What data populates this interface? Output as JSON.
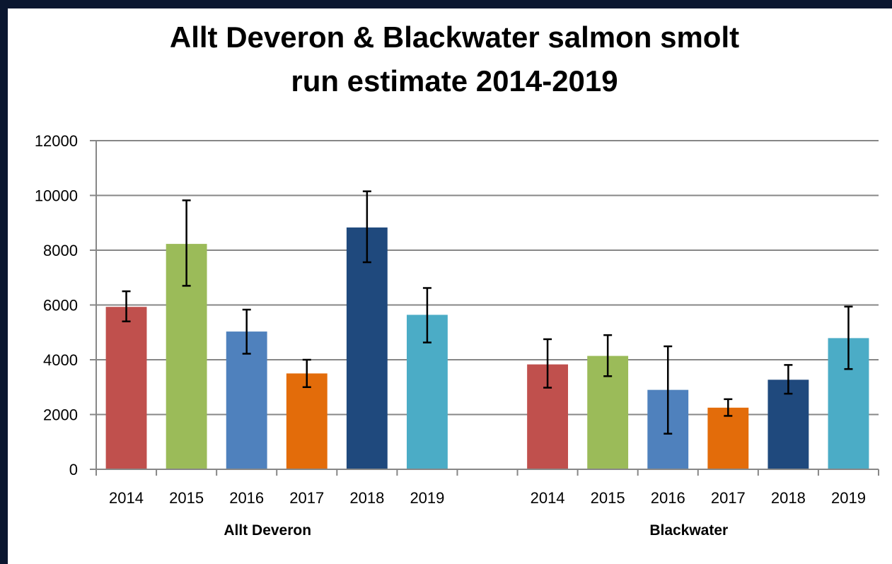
{
  "chart_data": {
    "type": "bar",
    "title_line1": "Allt Deveron & Blackwater salmon smolt",
    "title_line2": "run estimate 2014-2019",
    "xlabel": "",
    "ylabel": "",
    "ylim": [
      0,
      12000
    ],
    "yticks": [
      "0",
      "2000",
      "4000",
      "6000",
      "8000",
      "10000",
      "12000"
    ],
    "grid": true,
    "legend": "none",
    "groups": [
      {
        "name": "Allt Deveron",
        "bars": [
          {
            "year": "2014",
            "value": 5930,
            "err_low": 5400,
            "err_high": 6500,
            "color": "#c0504d"
          },
          {
            "year": "2015",
            "value": 8230,
            "err_low": 6700,
            "err_high": 9820,
            "color": "#9bbb59"
          },
          {
            "year": "2016",
            "value": 5030,
            "err_low": 4220,
            "err_high": 5830,
            "color": "#4f81bd"
          },
          {
            "year": "2017",
            "value": 3500,
            "err_low": 3000,
            "err_high": 4000,
            "color": "#e36c0a"
          },
          {
            "year": "2018",
            "value": 8830,
            "err_low": 7560,
            "err_high": 10150,
            "color": "#1f497d"
          },
          {
            "year": "2019",
            "value": 5640,
            "err_low": 4630,
            "err_high": 6620,
            "color": "#4bacc6"
          }
        ]
      },
      {
        "name": "Blackwater",
        "bars": [
          {
            "year": "2014",
            "value": 3830,
            "err_low": 2980,
            "err_high": 4750,
            "color": "#c0504d"
          },
          {
            "year": "2015",
            "value": 4140,
            "err_low": 3400,
            "err_high": 4900,
            "color": "#9bbb59"
          },
          {
            "year": "2016",
            "value": 2900,
            "err_low": 1300,
            "err_high": 4490,
            "color": "#4f81bd"
          },
          {
            "year": "2017",
            "value": 2250,
            "err_low": 1950,
            "err_high": 2560,
            "color": "#e36c0a"
          },
          {
            "year": "2018",
            "value": 3270,
            "err_low": 2760,
            "err_high": 3810,
            "color": "#1f497d"
          },
          {
            "year": "2019",
            "value": 4790,
            "err_low": 3660,
            "err_high": 5940,
            "color": "#4bacc6"
          }
        ]
      }
    ]
  }
}
